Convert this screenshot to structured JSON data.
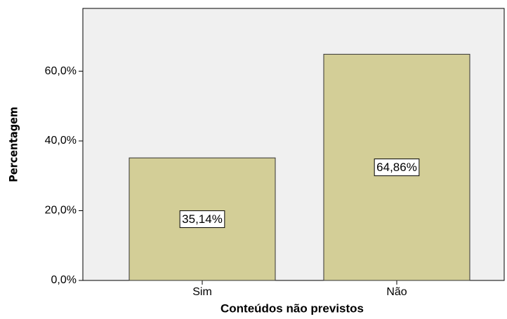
{
  "chart_data": {
    "type": "bar",
    "x_label": "Conteúdos não previstos",
    "y_label": "Percentagem",
    "categories": [
      "Sim",
      "Não"
    ],
    "values": [
      35.14,
      64.86
    ],
    "value_labels": [
      "35,14%",
      "64,86%"
    ],
    "color": "#d3ce97",
    "ylim": [
      0,
      78
    ],
    "yticks": [
      {
        "value": 0,
        "label": "0,0%"
      },
      {
        "value": 20,
        "label": "20,0%"
      },
      {
        "value": 40,
        "label": "40,0%"
      },
      {
        "value": 60,
        "label": "60,0%"
      }
    ],
    "grid": false
  }
}
